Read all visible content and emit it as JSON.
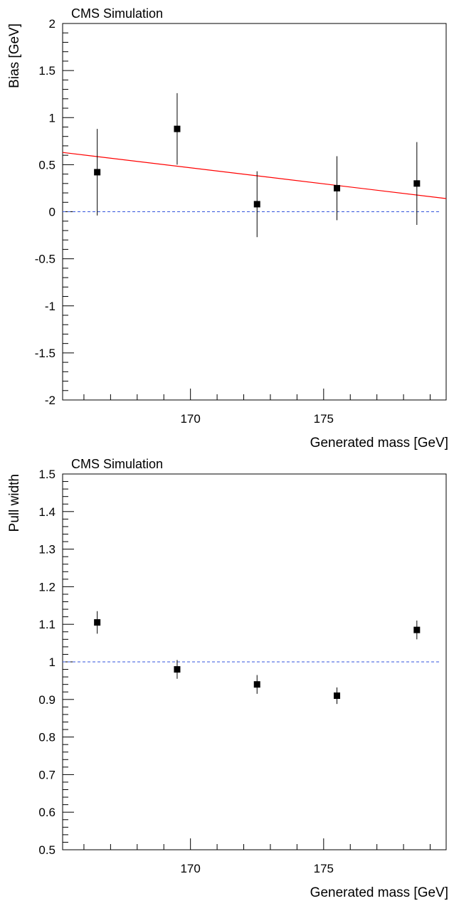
{
  "chart_data": [
    {
      "type": "scatter",
      "title": "CMS Simulation",
      "xlabel": "Generated mass [GeV]",
      "ylabel": "Bias [GeV]",
      "xlim": [
        165.2,
        179.6
      ],
      "ylim": [
        -2,
        2
      ],
      "x_ticks": [
        170,
        175
      ],
      "y_ticks": [
        2,
        1.5,
        1,
        0.5,
        0,
        -0.5,
        -1,
        -1.5,
        -2
      ],
      "grid": false,
      "series": [
        {
          "x": [
            166.5,
            169.5,
            172.5,
            175.5,
            178.5
          ],
          "y": [
            0.42,
            0.88,
            0.08,
            0.25,
            0.3
          ],
          "yerr": [
            0.46,
            0.38,
            0.35,
            0.34,
            0.44
          ],
          "marker": "square",
          "color": "#000000"
        }
      ],
      "fit_line": {
        "x": [
          165.2,
          179.6
        ],
        "y": [
          0.63,
          0.14
        ],
        "color": "#ff0000"
      },
      "reference_line": {
        "y": 0,
        "style": "dashed",
        "color": "#3355dd"
      }
    },
    {
      "type": "scatter",
      "title": "CMS Simulation",
      "xlabel": "Generated mass [GeV]",
      "ylabel": "Pull width",
      "xlim": [
        165.2,
        179.6
      ],
      "ylim": [
        0.5,
        1.5
      ],
      "x_ticks": [
        170,
        175
      ],
      "y_ticks": [
        1.5,
        1.4,
        1.3,
        1.2,
        1.1,
        1,
        0.9,
        0.8,
        0.7,
        0.6,
        0.5
      ],
      "grid": false,
      "series": [
        {
          "x": [
            166.5,
            169.5,
            172.5,
            175.5,
            178.5
          ],
          "y": [
            1.105,
            0.98,
            0.94,
            0.91,
            1.085
          ],
          "yerr": [
            0.03,
            0.025,
            0.025,
            0.022,
            0.025
          ],
          "marker": "square",
          "color": "#000000"
        }
      ],
      "reference_line": {
        "y": 1,
        "style": "dashed",
        "color": "#3355dd"
      }
    }
  ]
}
